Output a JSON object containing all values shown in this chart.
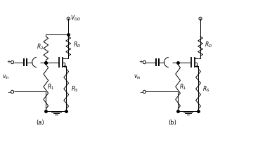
{
  "bg_color": "#ffffff",
  "line_color": "#000000",
  "dot_color": "#000000",
  "fig_width": 3.77,
  "fig_height": 2.19,
  "dpi": 100,
  "label_a": "(a)",
  "label_b": "(b)",
  "label_VDD": "$V_{DD}$",
  "label_RD": "$R_D$",
  "label_RS": "$R_S$",
  "label_R1": "$R_1$",
  "label_R2": "$R_2$",
  "label_vin": "$v_{in}$",
  "label_plus": "+",
  "label_minus": "−"
}
